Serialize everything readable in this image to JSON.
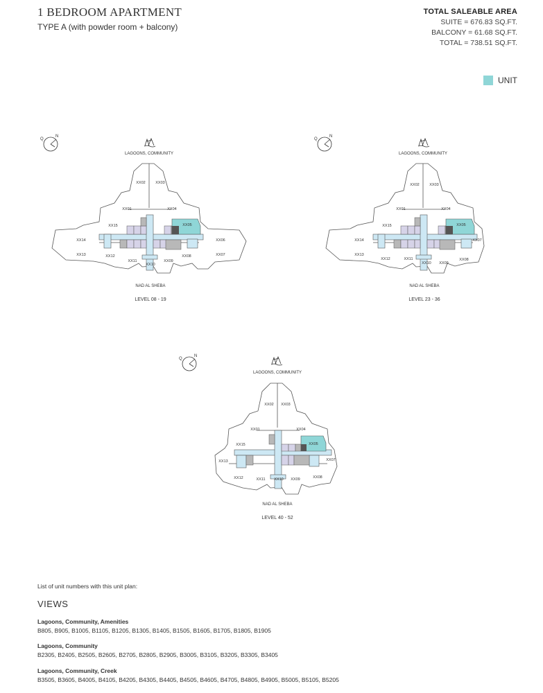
{
  "header": {
    "title": "1 BEDROOM APARTMENT",
    "subtitle": "TYPE A (with powder room + balcony)"
  },
  "area": {
    "heading": "TOTAL SALEABLE AREA",
    "suite": "SUITE = 676.83 SQ.FT.",
    "balcony": "BALCONY = 61.68 SQ.FT.",
    "total": "TOTAL = 738.51 SQ.FT."
  },
  "legend": {
    "label": "UNIT",
    "color": "#8fd6d7"
  },
  "colors": {
    "unit": "#8fd6d7",
    "corridor": "#cde8f4",
    "lavender": "#d6d3e8",
    "gray": "#b8b8b8",
    "dark": "#555555"
  },
  "compass": {
    "q": "Q",
    "n": "N"
  },
  "plans": [
    {
      "top_label": "LAGOONS, COMMUNITY",
      "bottom_label": "NAD AL SHEBA",
      "level": "LEVEL 08 - 19",
      "units": {
        "xx01": "XX01",
        "xx02": "XX02",
        "xx03": "XX03",
        "xx04": "XX04",
        "xx05": "XX05",
        "xx06": "XX06",
        "xx07": "XX07",
        "xx08": "XX08",
        "xx09": "XX09",
        "xx10": "XX10",
        "xx11": "XX11",
        "xx12": "XX12",
        "xx13": "XX13",
        "xx14": "XX14",
        "xx15": "XX15"
      }
    },
    {
      "top_label": "LAGOONS, COMMUNITY",
      "bottom_label": "NAD AL SHEBA",
      "level": "LEVEL 23 - 36",
      "units": {
        "xx01": "XX01",
        "xx02": "XX02",
        "xx03": "XX03",
        "xx04": "XX04",
        "xx05": "XX05",
        "xx07": "XX07",
        "xx08": "XX08",
        "xx09": "XX09",
        "xx10": "XX10",
        "xx11": "XX11",
        "xx12": "XX12",
        "xx13": "XX13",
        "xx14": "XX14",
        "xx15": "XX15"
      }
    },
    {
      "top_label": "LAGOONS, COMMUNITY",
      "bottom_label": "NAD AL SHEBA",
      "level": "LEVEL 40 - 52",
      "units": {
        "xx01": "XX01",
        "xx02": "XX02",
        "xx03": "XX03",
        "xx04": "XX04",
        "xx05": "XX05",
        "xx07": "XX07",
        "xx08": "XX08",
        "xx09": "XX09",
        "xx10": "XX10",
        "xx11": "XX11",
        "xx12": "XX12",
        "xx13": "XX13",
        "xx15": "XX15"
      }
    }
  ],
  "unit_list": {
    "intro": "List of unit numbers with this unit plan:",
    "views_heading": "VIEWS",
    "groups": [
      {
        "title": "Lagoons, Community, Amenities",
        "units": "B805, B905, B1005, B1105, B1205, B1305, B1405, B1505, B1605, B1705, B1805, B1905"
      },
      {
        "title": "Lagoons, Community",
        "units": "B2305, B2405, B2505, B2605, B2705, B2805, B2905, B3005, B3105, B3205, B3305, B3405"
      },
      {
        "title": "Lagoons, Community, Creek",
        "units": "B3505, B3605, B4005, B4105, B4205, B4305, B4405, B4505, B4605, B4705, B4805, B4905, B5005, B5105, B5205"
      }
    ]
  }
}
